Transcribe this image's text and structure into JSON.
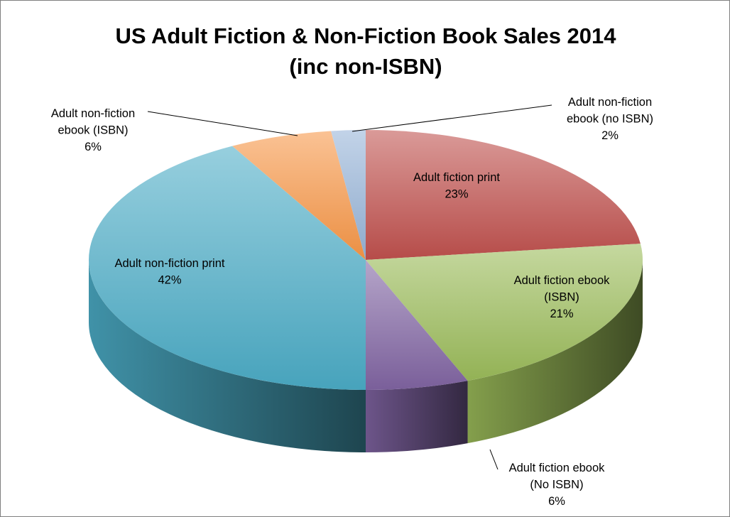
{
  "chart_data": {
    "type": "pie",
    "title": "US Adult Fiction & Non-Fiction Book Sales 2014 (inc non-ISBN)",
    "title_lines": [
      "US Adult Fiction & Non-Fiction Book Sales 2014",
      "(inc non-ISBN)"
    ],
    "slices": [
      {
        "key": "fiction_print",
        "label_lines": [
          "Adult fiction print"
        ],
        "pct_label": "23%",
        "value": 23,
        "color": "#c0504d"
      },
      {
        "key": "fiction_ebook_isbn",
        "label_lines": [
          "Adult fiction ebook",
          "(ISBN)"
        ],
        "pct_label": "21%",
        "value": 21,
        "color": "#9bbb59"
      },
      {
        "key": "fiction_ebook_no_isbn",
        "label_lines": [
          "Adult fiction ebook",
          "(No ISBN)"
        ],
        "pct_label": "6%",
        "value": 6,
        "color": "#8064a2"
      },
      {
        "key": "nonfiction_print",
        "label_lines": [
          "Adult non-fiction print"
        ],
        "pct_label": "42%",
        "value": 42,
        "color": "#4bacc6"
      },
      {
        "key": "nonfiction_ebook_isbn",
        "label_lines": [
          "Adult non-fiction",
          "ebook (ISBN)"
        ],
        "pct_label": "6%",
        "value": 6,
        "color": "#f79646"
      },
      {
        "key": "nonfiction_ebook_no_isbn",
        "label_lines": [
          "Adult non-fiction",
          "ebook (no ISBN)"
        ],
        "pct_label": "2%",
        "value": 2,
        "color": "#95b3d7"
      }
    ],
    "legend": "none",
    "style": "3d"
  }
}
